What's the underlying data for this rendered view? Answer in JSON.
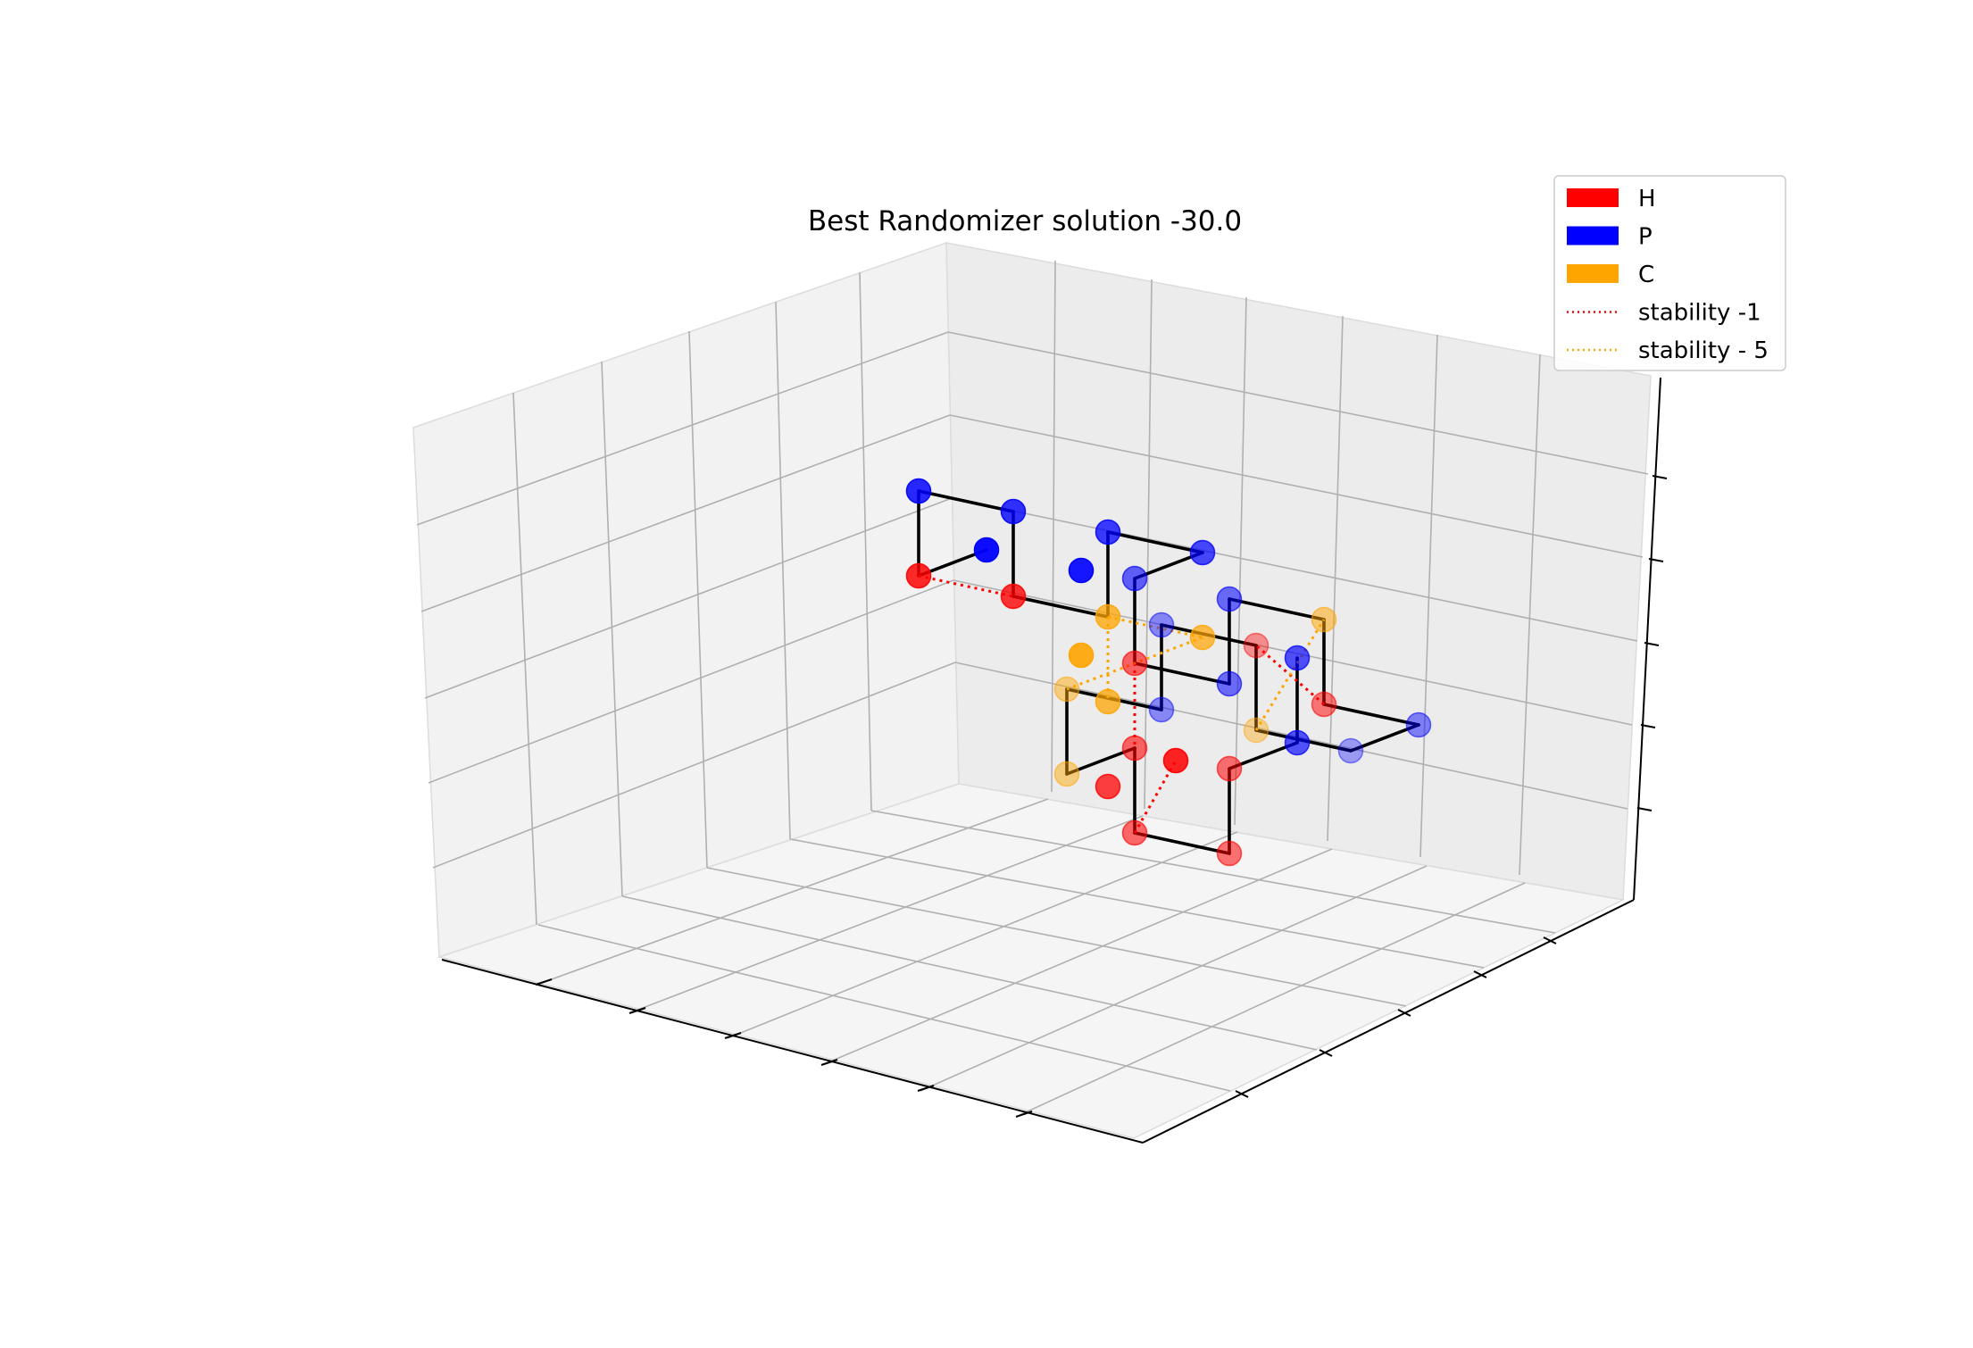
{
  "chart_data": {
    "type": "scatter",
    "title": "Best Randomizer solution -30.0",
    "xlabel": "",
    "ylabel": "",
    "zlabel": "",
    "projection": "3d",
    "grid": true,
    "legend_position": "top-right",
    "colors": {
      "H": "#ff0000",
      "P": "#0000ff",
      "C": "#ffa500",
      "chain": "#000000",
      "stability_h": "#ff0000",
      "stability_c": "#ffa500"
    },
    "legend": [
      {
        "label": "H",
        "kind": "patch",
        "color": "#ff0000"
      },
      {
        "label": "P",
        "kind": "patch",
        "color": "#0000ff"
      },
      {
        "label": "C",
        "kind": "patch",
        "color": "#ffa500"
      },
      {
        "label": "stability -1",
        "kind": "dotted",
        "color": "#ff0000"
      },
      {
        "label": "stability - 5",
        "kind": "dotted",
        "color": "#ffa500"
      }
    ],
    "residues": [
      {
        "type": "P",
        "x": 0,
        "y": 0,
        "z": 0
      },
      {
        "type": "H",
        "x": 0,
        "y": 1,
        "z": 0
      },
      {
        "type": "P",
        "x": 0,
        "y": 1,
        "z": 1
      },
      {
        "type": "P",
        "x": 1,
        "y": 1,
        "z": 1
      },
      {
        "type": "H",
        "x": 1,
        "y": 1,
        "z": 0
      },
      {
        "type": "C",
        "x": 2,
        "y": 1,
        "z": 0
      },
      {
        "type": "P",
        "x": 2,
        "y": 1,
        "z": 1
      },
      {
        "type": "P",
        "x": 3,
        "y": 1,
        "z": 1
      },
      {
        "type": "P",
        "x": 3,
        "y": 2,
        "z": 1
      },
      {
        "type": "H",
        "x": 3,
        "y": 2,
        "z": 0
      },
      {
        "type": "P",
        "x": 4,
        "y": 2,
        "z": 0
      },
      {
        "type": "P",
        "x": 4,
        "y": 2,
        "z": 1
      },
      {
        "type": "C",
        "x": 5,
        "y": 2,
        "z": 1
      },
      {
        "type": "H",
        "x": 5,
        "y": 2,
        "z": 0
      },
      {
        "type": "P",
        "x": 6,
        "y": 2,
        "z": 0
      },
      {
        "type": "P",
        "x": 6,
        "y": 3,
        "z": 0
      },
      {
        "type": "C",
        "x": 5,
        "y": 3,
        "z": 0
      },
      {
        "type": "H",
        "x": 5,
        "y": 3,
        "z": 1
      },
      {
        "type": "P",
        "x": 4,
        "y": 3,
        "z": 1
      },
      {
        "type": "P",
        "x": 4,
        "y": 3,
        "z": 0
      },
      {
        "type": "C",
        "x": 3,
        "y": 3,
        "z": 0
      },
      {
        "type": "C",
        "x": 3,
        "y": 3,
        "z": -1
      },
      {
        "type": "H",
        "x": 3,
        "y": 2,
        "z": -1
      },
      {
        "type": "H",
        "x": 3,
        "y": 2,
        "z": -2
      },
      {
        "type": "H",
        "x": 4,
        "y": 2,
        "z": -2
      },
      {
        "type": "H",
        "x": 4,
        "y": 2,
        "z": -1
      },
      {
        "type": "P",
        "x": 4,
        "y": 1,
        "z": -1
      },
      {
        "type": "P",
        "x": 4,
        "y": 1,
        "z": 0
      },
      {
        "type": "C",
        "x": 3,
        "y": 1,
        "z": 0
      },
      {
        "type": "C",
        "x": 2,
        "y": 1,
        "z": -1
      },
      {
        "type": "H",
        "x": 2,
        "y": 1,
        "z": -2
      },
      {
        "type": "H",
        "x": 2,
        "y": 0,
        "z": -2
      },
      {
        "type": "P",
        "x": 1,
        "y": 0,
        "z": 0
      },
      {
        "type": "C",
        "x": 1,
        "y": 0,
        "z": -1
      }
    ],
    "chain": [
      [
        0,
        1
      ],
      [
        1,
        2
      ],
      [
        2,
        3
      ],
      [
        3,
        4
      ],
      [
        4,
        5
      ],
      [
        5,
        6
      ],
      [
        6,
        7
      ],
      [
        7,
        8
      ],
      [
        8,
        9
      ],
      [
        9,
        10
      ],
      [
        10,
        11
      ],
      [
        11,
        12
      ],
      [
        12,
        13
      ],
      [
        13,
        14
      ],
      [
        14,
        15
      ],
      [
        15,
        16
      ],
      [
        16,
        17
      ],
      [
        17,
        18
      ],
      [
        18,
        19
      ],
      [
        19,
        20
      ],
      [
        20,
        21
      ],
      [
        21,
        22
      ],
      [
        22,
        23
      ],
      [
        23,
        24
      ],
      [
        24,
        25
      ],
      [
        25,
        26
      ],
      [
        26,
        27
      ]
    ],
    "stability_h": [
      [
        1,
        4
      ],
      [
        13,
        17
      ],
      [
        9,
        22
      ],
      [
        23,
        31
      ]
    ],
    "stability_c": [
      [
        5,
        28
      ],
      [
        28,
        20
      ],
      [
        5,
        29
      ],
      [
        16,
        12
      ]
    ]
  }
}
